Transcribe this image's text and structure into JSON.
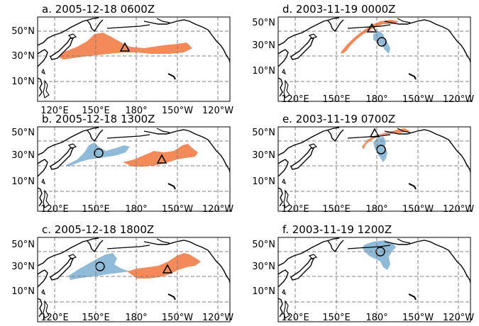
{
  "colors": {
    "orange": "#f4895a",
    "blue": "#8fbbd9",
    "grid": "#7f7f7f",
    "coast": "#000000"
  },
  "axes": {
    "lat_ticks": [
      "50°N",
      "30°N",
      "10°N"
    ],
    "lon_ticks": [
      "120°E",
      "150°E",
      "180°",
      "150°W",
      "120°W"
    ]
  },
  "panels": [
    {
      "title": "a. 2005-12-18 0600Z",
      "markers": [
        "triangle"
      ],
      "plumes": [
        "orange"
      ]
    },
    {
      "title": "b. 2005-12-18 1300Z",
      "markers": [
        "circle",
        "triangle"
      ],
      "plumes": [
        "blue",
        "orange"
      ]
    },
    {
      "title": "c. 2005-12-18 1800Z",
      "markers": [
        "circle",
        "triangle"
      ],
      "plumes": [
        "blue",
        "orange"
      ]
    },
    {
      "title": "d. 2003-11-19 0000Z",
      "markers": [
        "triangle",
        "circle"
      ],
      "plumes": [
        "orange",
        "blue"
      ]
    },
    {
      "title": "e. 2003-11-19 0700Z",
      "markers": [
        "triangle",
        "circle"
      ],
      "plumes": [
        "orange",
        "blue"
      ]
    },
    {
      "title": "f. 2003-11-19 1200Z",
      "markers": [
        "circle"
      ],
      "plumes": [
        "blue"
      ]
    }
  ]
}
